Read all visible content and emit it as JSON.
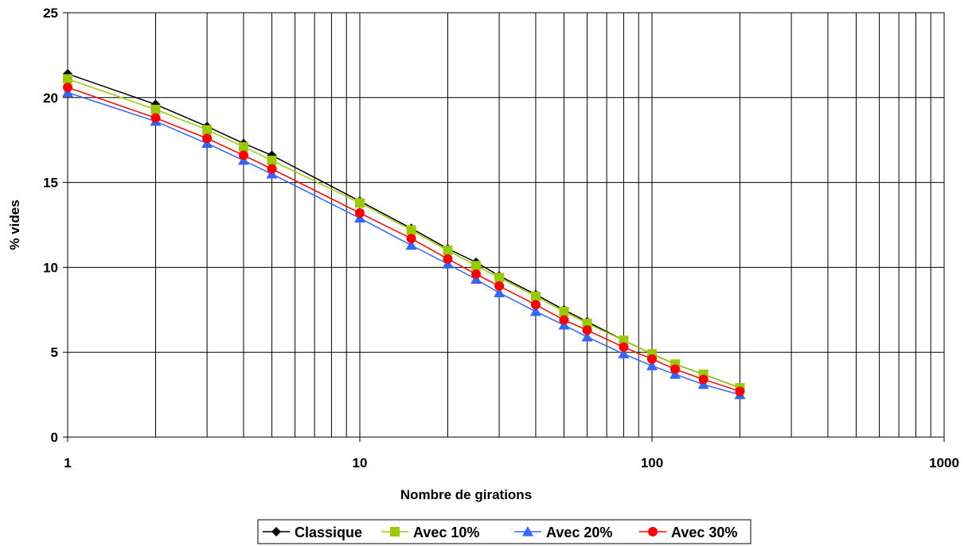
{
  "chart_data": {
    "type": "line",
    "xscale": "log",
    "xlim": [
      1,
      1000
    ],
    "ylim": [
      0,
      25
    ],
    "xticks": [
      "1",
      "10",
      "100",
      "1000"
    ],
    "yticks": [
      "0",
      "5",
      "10",
      "15",
      "20",
      "25"
    ],
    "xlabel": "Nombre de girations",
    "ylabel": "% vides",
    "grid": true,
    "legend_position": "bottom",
    "x": [
      1,
      2,
      3,
      4,
      5,
      10,
      15,
      20,
      25,
      30,
      40,
      50,
      60,
      80,
      100,
      120,
      150,
      200
    ],
    "series": [
      {
        "name": "Classique",
        "color": "#000000",
        "marker": "diamond",
        "values": [
          21.4,
          19.6,
          18.3,
          17.3,
          16.6,
          13.9,
          12.3,
          11.1,
          10.3,
          9.5,
          8.4,
          7.5,
          6.8,
          5.7,
          4.9,
          4.3,
          3.7,
          2.9
        ]
      },
      {
        "name": "Avec 10%",
        "color": "#99CC00",
        "marker": "square",
        "values": [
          21.1,
          19.3,
          18.1,
          17.1,
          16.3,
          13.8,
          12.2,
          11.0,
          10.1,
          9.4,
          8.3,
          7.4,
          6.7,
          5.7,
          4.9,
          4.3,
          3.7,
          2.9
        ]
      },
      {
        "name": "Avec 20%",
        "color": "#3366FF",
        "marker": "triangle",
        "values": [
          20.3,
          18.6,
          17.3,
          16.3,
          15.5,
          12.9,
          11.3,
          10.2,
          9.3,
          8.5,
          7.4,
          6.6,
          5.9,
          4.9,
          4.2,
          3.7,
          3.1,
          2.5
        ]
      },
      {
        "name": "Avec 30%",
        "color": "#FF0000",
        "marker": "circle",
        "values": [
          20.6,
          18.8,
          17.6,
          16.6,
          15.8,
          13.2,
          11.7,
          10.5,
          9.6,
          8.9,
          7.8,
          6.9,
          6.3,
          5.3,
          4.6,
          4.0,
          3.4,
          2.7
        ]
      }
    ]
  }
}
